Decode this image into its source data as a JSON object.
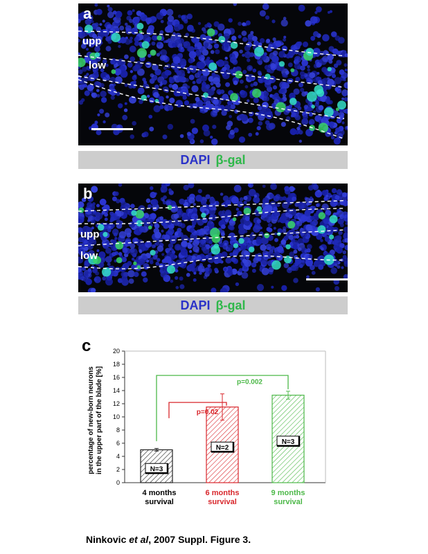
{
  "panel_a": {
    "letter": "a",
    "layer_upper": "upp",
    "layer_lower": "low",
    "caption_stain1": "DAPI",
    "caption_stain2": "β-gal"
  },
  "panel_b": {
    "letter": "b",
    "layer_upper": "upp",
    "layer_lower": "low",
    "caption_stain1": "DAPI",
    "caption_stain2": "β-gal"
  },
  "colors": {
    "dapi": "#2a32c8",
    "bgal": "#2fb84a",
    "black_series": "#222222",
    "red_series": "#d8262b",
    "green_series": "#4cb848"
  },
  "chart_letter": "c",
  "chart_data": {
    "type": "bar",
    "categories": [
      "4 months survival",
      "6 months survival",
      "9 months survival"
    ],
    "category_lines": [
      [
        "4 months",
        "survival"
      ],
      [
        "6 months",
        "survival"
      ],
      [
        "9 months",
        "survival"
      ]
    ],
    "values": [
      5.0,
      11.5,
      13.3
    ],
    "errors": [
      0.2,
      2.0,
      0.6
    ],
    "n_labels": [
      "N=3",
      "N=2",
      "N=3"
    ],
    "bar_colors": [
      "#222222",
      "#d8262b",
      "#4cb848"
    ],
    "ylabel_lines": [
      "percentage of new-born neurons",
      "in the upper part of the blade [%]"
    ],
    "ylim": [
      0,
      20
    ],
    "yticks": [
      0,
      2,
      4,
      6,
      8,
      10,
      12,
      14,
      16,
      18,
      20
    ],
    "xlabel": "",
    "title": "",
    "annotations": [
      {
        "text": "p=0.02",
        "from": 0,
        "to": 1,
        "color": "#d8262b"
      },
      {
        "text": "p=0.002",
        "from": 0,
        "to": 2,
        "color": "#4cb848"
      }
    ]
  },
  "footer": {
    "author": "Ninkovic ",
    "etal": "et al",
    "rest": ", 2007 Suppl. Figure 3."
  }
}
